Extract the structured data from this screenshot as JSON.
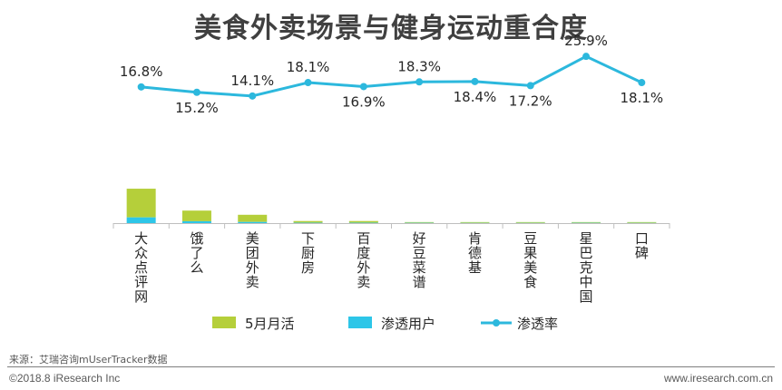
{
  "chart_data": {
    "type": "bar",
    "title": "美食外卖场景与健身运动重合度",
    "categories": [
      "大众点评网",
      "饿了么",
      "美团外卖",
      "下厨房",
      "百度外卖",
      "好豆菜谱",
      "肯德基",
      "豆果美食",
      "星巴克中国",
      "口碑"
    ],
    "series": [
      {
        "name": "5月月活",
        "type": "bar",
        "stack": "users",
        "color": "#b5cf3a",
        "values": [
          33,
          12,
          8,
          2,
          2,
          1,
          1,
          1,
          1,
          1
        ]
      },
      {
        "name": "渗透用户",
        "type": "bar",
        "stack": "users",
        "color": "#2dc6e8",
        "values": [
          5.5,
          1.8,
          1.1,
          0.4,
          0.4,
          0.3,
          0.2,
          0.2,
          0.3,
          0.2
        ]
      },
      {
        "name": "渗透率",
        "type": "line",
        "color": "#2cb8dd",
        "values": [
          16.8,
          15.2,
          14.1,
          18.1,
          16.9,
          18.3,
          18.4,
          17.2,
          25.9,
          18.1
        ],
        "labels": [
          "16.8%",
          "15.2%",
          "14.1%",
          "18.1%",
          "16.9%",
          "18.3%",
          "18.4%",
          "17.2%",
          "25.9%",
          "18.1%"
        ]
      }
    ],
    "bar_ylim": [
      0,
      40
    ],
    "line_ylim": [
      0,
      30
    ],
    "legend": [
      "5月月活",
      "渗透用户",
      "渗透率"
    ],
    "legend_position": "bottom",
    "grid": false
  },
  "footer": {
    "source": "来源：艾瑞咨询mUserTracker数据",
    "copyright": "©2018.8 iResearch Inc",
    "website": "www.iresearch.com.cn"
  }
}
